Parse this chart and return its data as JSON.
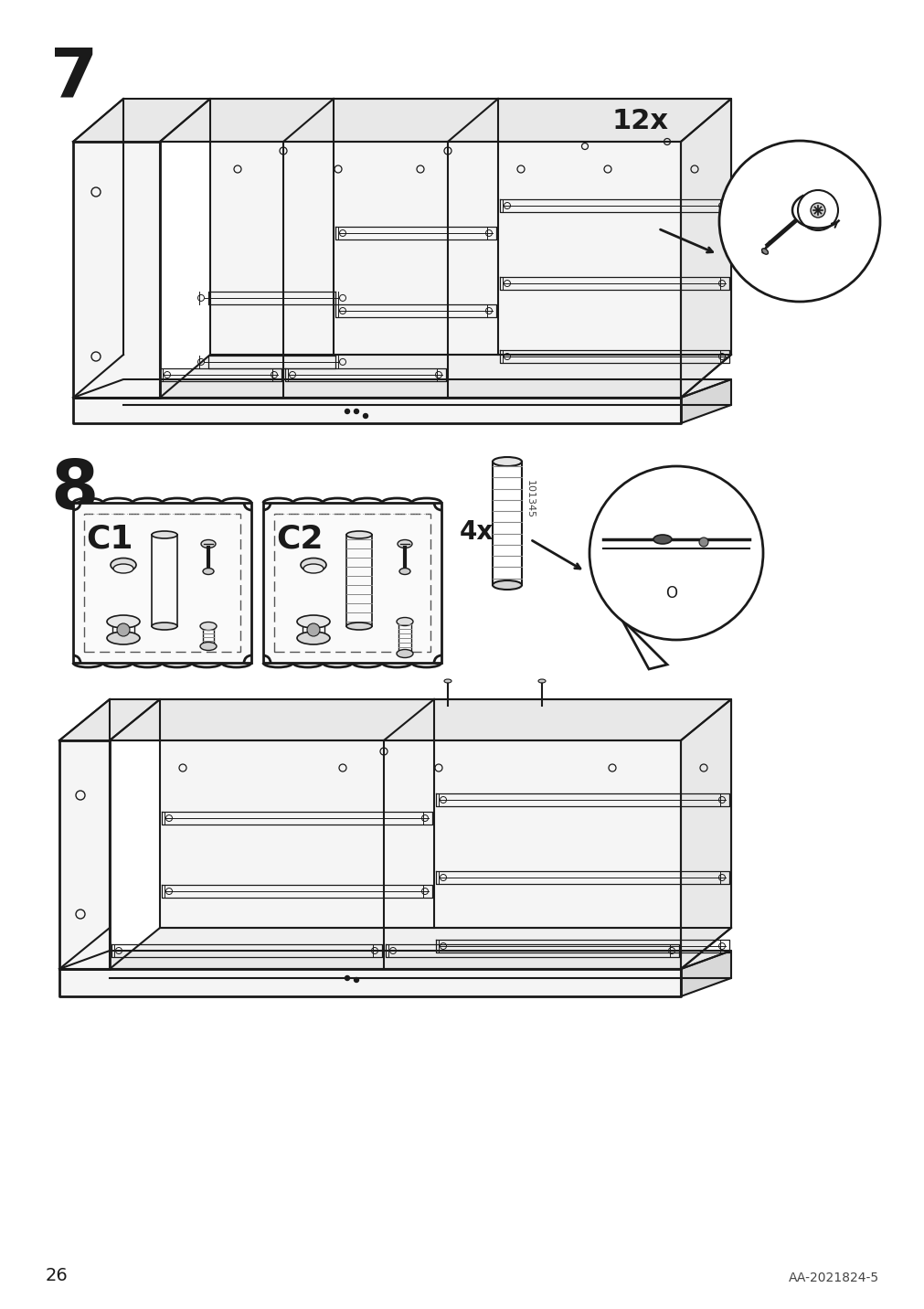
{
  "background_color": "#ffffff",
  "page_number": "26",
  "doc_number": "AA-2021824-5",
  "step7_label": "7",
  "step8_label": "8",
  "count_12x": "12x",
  "count_4x": "4x",
  "part_c1": "C1",
  "part_c2": "C2",
  "part_number": "101345",
  "line_color": "#1a1a1a",
  "fill_light": "#f5f5f5",
  "fill_mid": "#e8e8e8",
  "fill_dark": "#d8d8d8",
  "fill_white": "#ffffff"
}
